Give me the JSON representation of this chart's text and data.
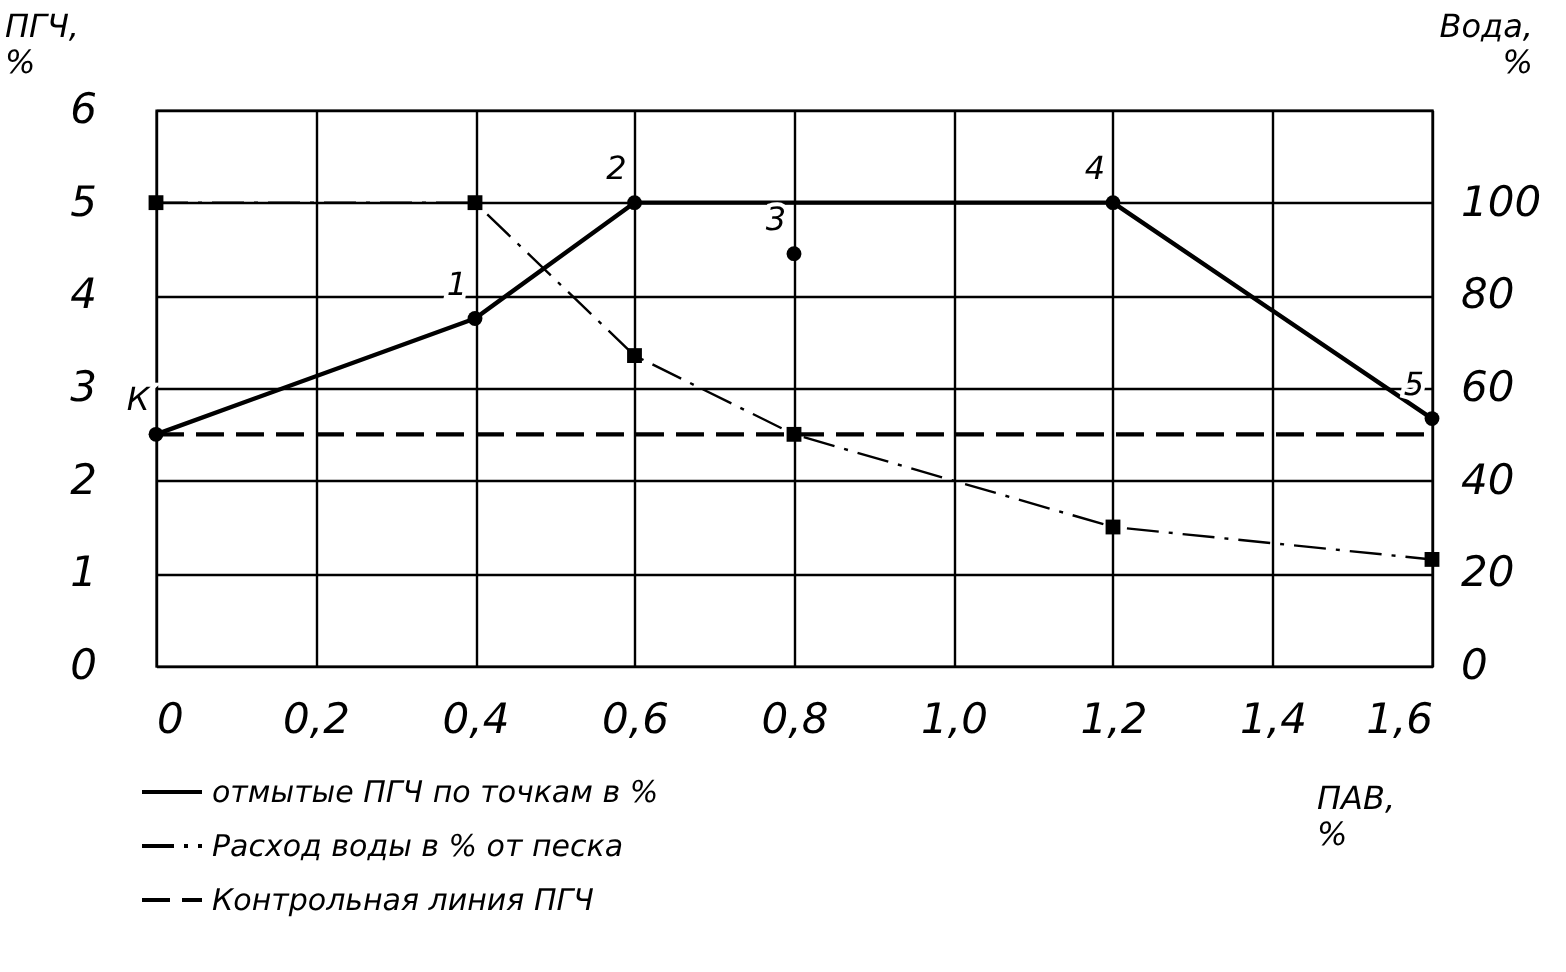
{
  "chart_data": {
    "type": "line",
    "ylabel": "ПГЧ, %",
    "y2label": "Вода, %",
    "xlabel": "ПАВ, %",
    "xlim": [
      0,
      1.6
    ],
    "xticks": [
      0,
      {
        "value": 0.2,
        "label": "0,2"
      },
      {
        "value": 0.4,
        "label": "0,4"
      },
      {
        "value": 0.6,
        "label": "0,6"
      },
      {
        "value": 0.8,
        "label": "0,8"
      },
      {
        "value": 1.0,
        "label": "1,0"
      },
      {
        "value": 1.2,
        "label": "1,2"
      },
      {
        "value": 1.4,
        "label": "1,4"
      },
      {
        "value": 1.6,
        "label": "1,6"
      }
    ],
    "ylim": [
      0,
      6
    ],
    "yticks": [
      0,
      1,
      2,
      3,
      4,
      5,
      6
    ],
    "y2lim": [
      0,
      120
    ],
    "y2ticks": [
      0,
      20,
      40,
      60,
      80,
      100
    ],
    "grid": true,
    "legend": "bottom left",
    "series": [
      {
        "name": "отмытые ПГЧ по точкам в %",
        "type": "line",
        "color": "#000000",
        "marker": "circle",
        "line_style": "solid",
        "x": [
          0,
          0.4,
          0.6,
          1.2,
          1.6
        ],
        "values": [
          2.5,
          3.75,
          5.0,
          5.0,
          2.67
        ]
      },
      {
        "type": "scatter",
        "color": "#000000",
        "marker": "circle",
        "x": [
          0.8
        ],
        "values": [
          4.45
        ]
      },
      {
        "name": "Расход воды в % от песка",
        "type": "line",
        "axis": "y2",
        "color": "#000000",
        "marker": "square",
        "line_style": "dotted",
        "x": [
          0,
          0.4,
          0.6,
          0.8,
          1.2,
          1.6
        ],
        "values": [
          100,
          100,
          67,
          50,
          30,
          23
        ]
      },
      {
        "name": "Контрольная линия ПГЧ",
        "type": "line",
        "color": "#000000",
        "marker": "none",
        "line_style": "dashed",
        "x": [
          0,
          1.6
        ],
        "values": [
          2.5,
          2.5
        ]
      }
    ],
    "annotations": [
      {
        "text": "К",
        "x": 0,
        "y": 2.5
      },
      {
        "text": "1",
        "x": 0.4,
        "y": 3.75
      },
      {
        "text": "2",
        "x": 0.6,
        "y": 5.0
      },
      {
        "text": "3",
        "x": 0.8,
        "y": 4.45
      },
      {
        "text": "4",
        "x": 1.2,
        "y": 5.0
      },
      {
        "text": "5",
        "x": 1.6,
        "y": 2.67
      }
    ]
  }
}
